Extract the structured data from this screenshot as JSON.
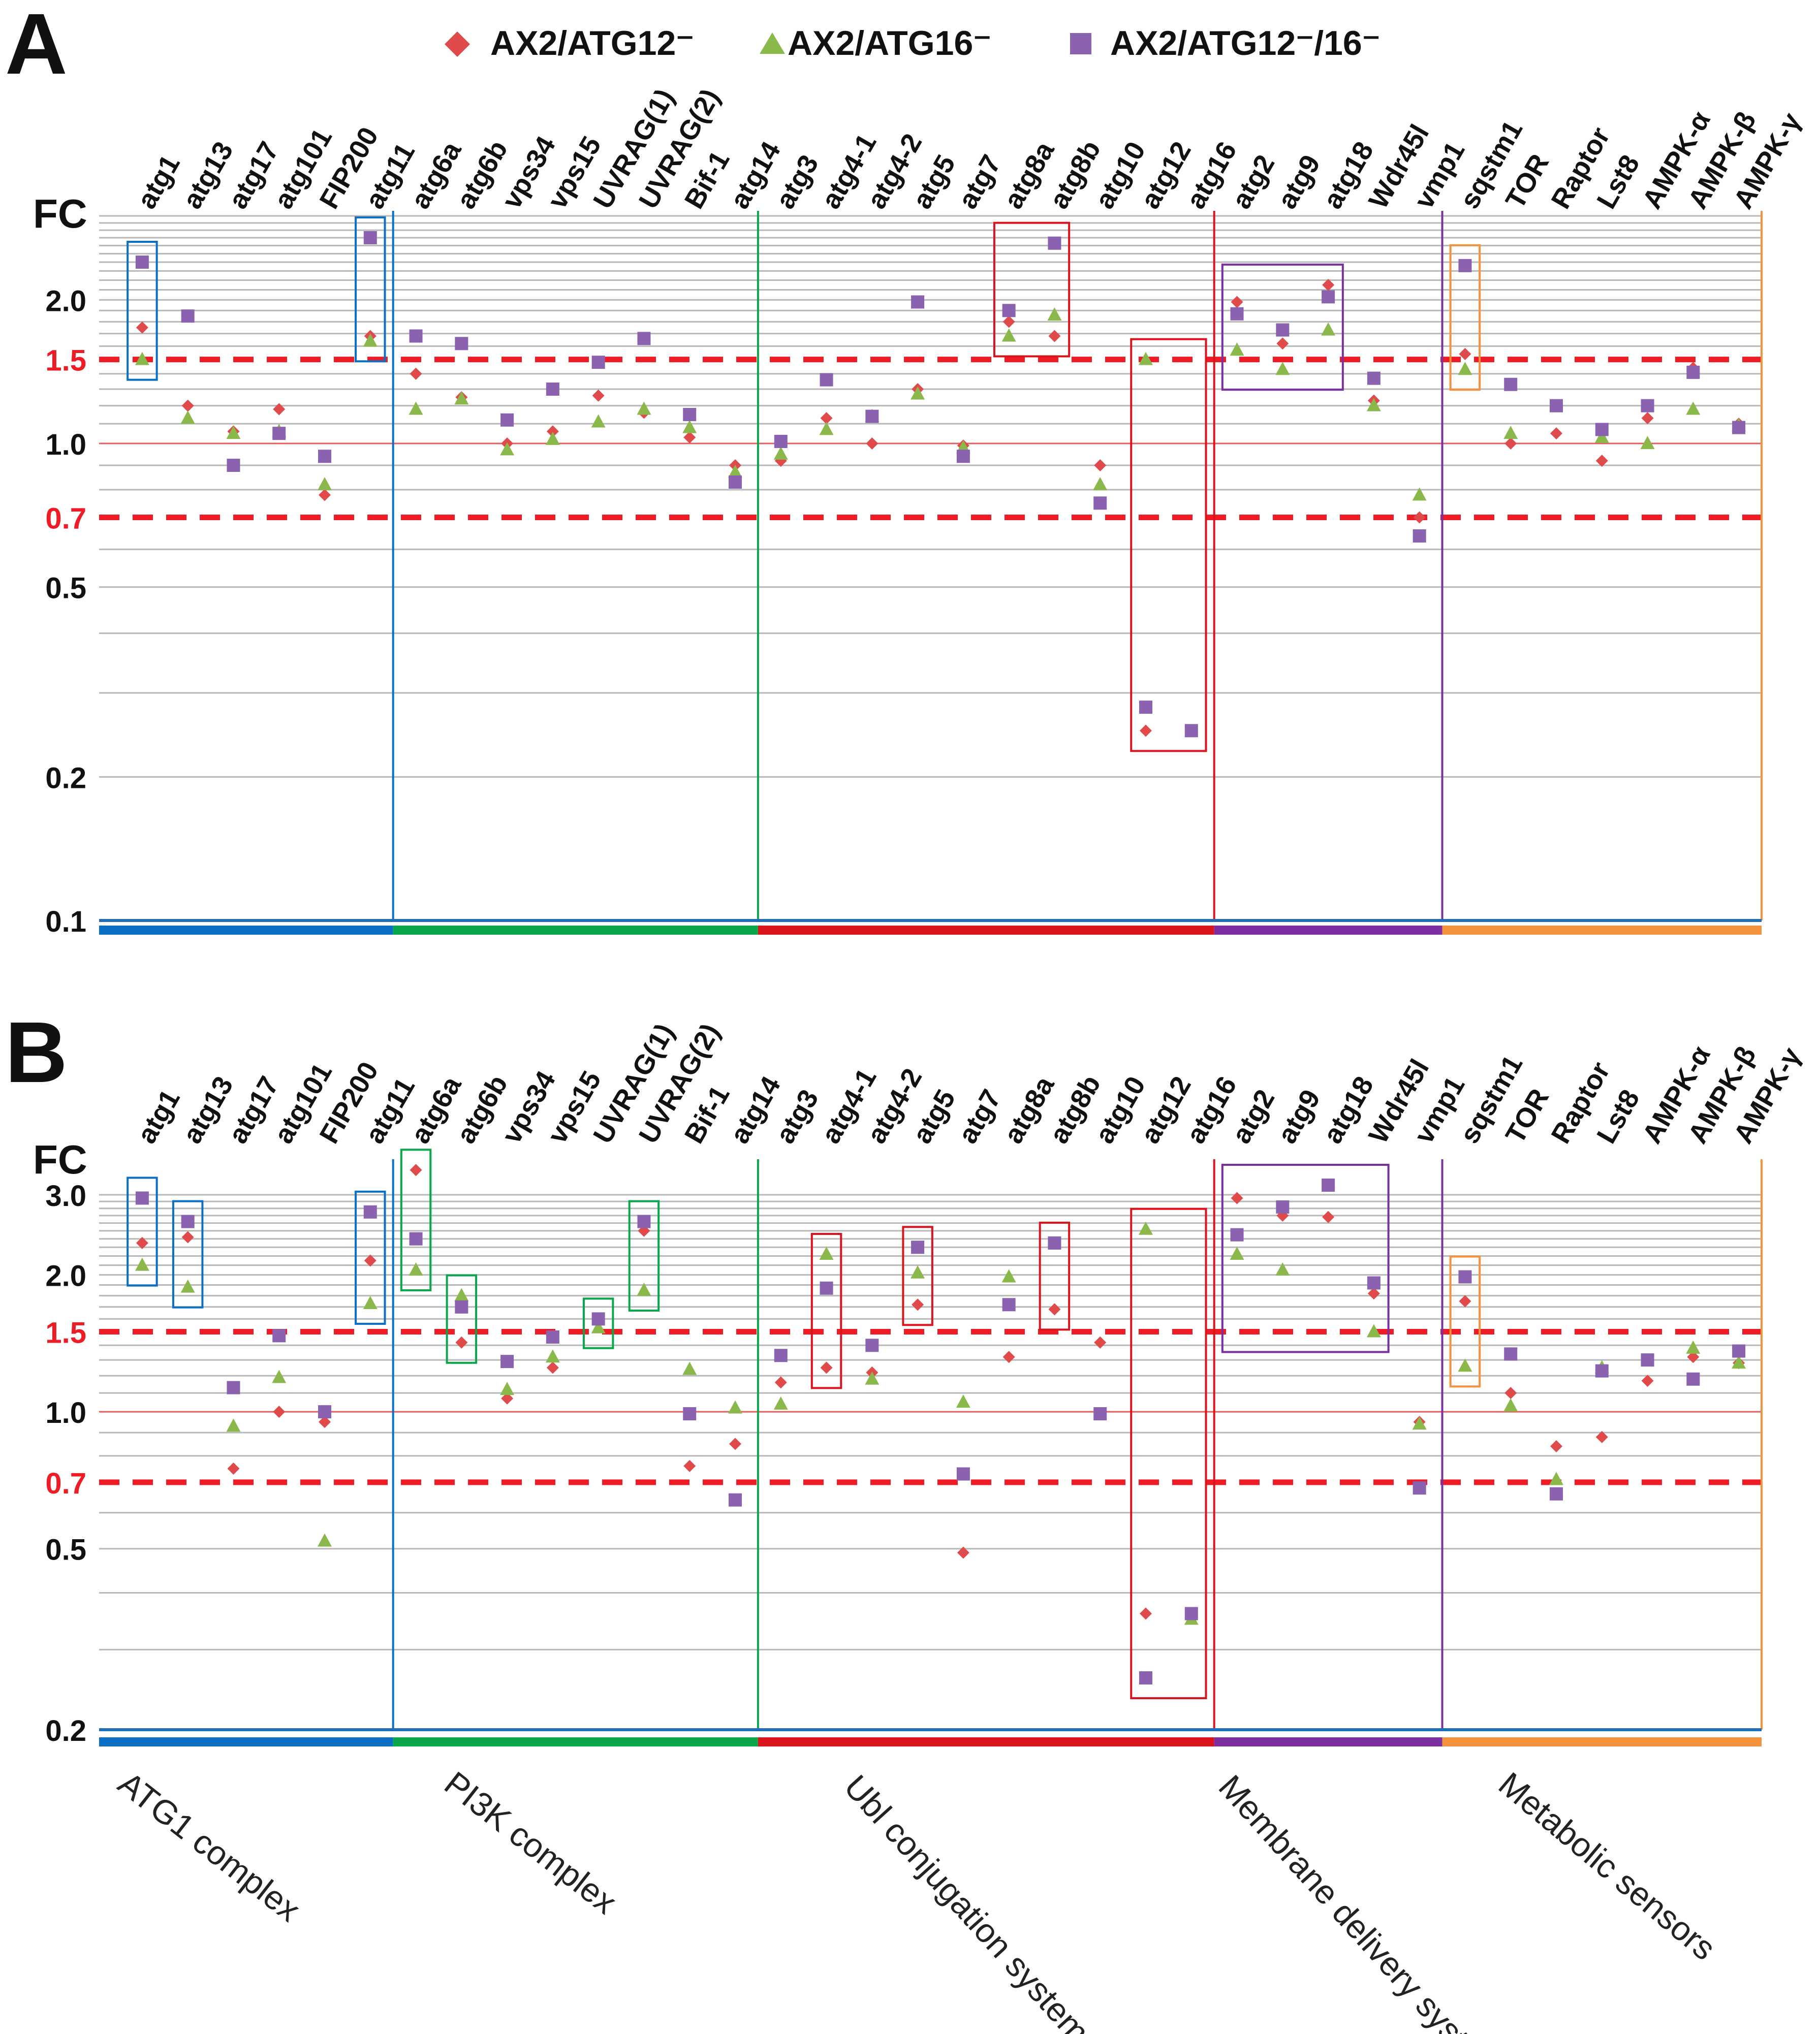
{
  "figure": {
    "legend": [
      {
        "label": "AX2/ATG12⁻",
        "marker": "diamond",
        "color": "#e04a4a"
      },
      {
        "label": "AX2/ATG16⁻",
        "marker": "triangle",
        "color": "#8bb84a"
      },
      {
        "label": "AX2/ATG12⁻/16⁻",
        "marker": "square",
        "color": "#8a62b0"
      }
    ],
    "panel_labels": [
      "A",
      "B"
    ],
    "y_axis_title": "FC",
    "colors": {
      "atg1_complex": "#0b70c4",
      "pi3k_complex": "#0aa64a",
      "ubl_conjugation": "#d9141d",
      "membrane_delivery": "#7b2fa0",
      "metabolic_sensors": "#f5923e",
      "threshold_line": "#ee1c24",
      "grid": "#b8b8b8"
    },
    "group_labels": [
      "ATG1 complex",
      "PI3K complex",
      "Ubl conjugation systems",
      "Membrane delivery system",
      "Metabolic sensors"
    ]
  },
  "chart_data": [
    {
      "panel": "A",
      "type": "scatter",
      "title": "",
      "xlabel": "",
      "ylabel": "FC",
      "yscale": "log",
      "ylim": [
        0.1,
        3.0
      ],
      "yticks": [
        0.1,
        0.2,
        0.5,
        0.7,
        1.0,
        1.5,
        2.0
      ],
      "ytick_labels": [
        "0.1",
        "0.2",
        "0.5",
        "0.7",
        "1.0",
        "1.5",
        "2.0"
      ],
      "thresholds": [
        0.7,
        1.5
      ],
      "categories": [
        "atg1",
        "atg13",
        "atg17",
        "atg101",
        "FIP200",
        "atg11",
        "atg6a",
        "atg6b",
        "vps34",
        "vps15",
        "UVRAG(1)",
        "UVRAG(2)",
        "Bif-1",
        "atg14",
        "atg3",
        "atg4-1",
        "atg4-2",
        "atg5",
        "atg7",
        "atg8a",
        "atg8b",
        "atg10",
        "atg12",
        "atg16",
        "atg2",
        "atg9",
        "atg18",
        "Wdr45l",
        "vmp1",
        "sqstm1",
        "TOR",
        "Raptor",
        "Lst8",
        "AMPK-α",
        "AMPK-β",
        "AMPK-γ"
      ],
      "groups": [
        {
          "name": "ATG1 complex",
          "start": 0,
          "end": 5
        },
        {
          "name": "PI3K complex",
          "start": 6,
          "end": 13
        },
        {
          "name": "Ubl conjugation systems",
          "start": 14,
          "end": 23
        },
        {
          "name": "Membrane delivery system",
          "start": 24,
          "end": 28
        },
        {
          "name": "Metabolic sensors",
          "start": 29,
          "end": 35
        }
      ],
      "series": [
        {
          "name": "AX2/ATG12⁻",
          "values": [
            1.75,
            1.2,
            1.06,
            1.18,
            0.78,
            1.68,
            1.4,
            1.25,
            1.0,
            1.06,
            1.26,
            1.16,
            1.03,
            0.9,
            0.92,
            1.13,
            1.0,
            1.3,
            0.99,
            1.8,
            1.68,
            0.9,
            0.25,
            null,
            1.98,
            1.62,
            2.15,
            1.23,
            0.7,
            1.54,
            1.0,
            1.05,
            0.92,
            1.13,
            1.44,
            1.1
          ]
        },
        {
          "name": "AX2/ATG16⁻",
          "values": [
            1.5,
            1.13,
            1.05,
            1.06,
            0.82,
            1.64,
            1.18,
            1.24,
            0.97,
            1.02,
            1.11,
            1.18,
            1.08,
            0.87,
            0.95,
            1.07,
            1.14,
            1.27,
            0.98,
            1.68,
            1.86,
            0.82,
            1.5,
            null,
            1.57,
            1.43,
            1.73,
            1.2,
            0.78,
            1.43,
            1.05,
            null,
            1.03,
            1.0,
            1.18,
            1.09
          ]
        },
        {
          "name": "AX2/ATG12⁻/16⁻",
          "values": [
            2.4,
            1.85,
            0.9,
            1.05,
            0.94,
            2.7,
            1.68,
            1.62,
            1.12,
            1.3,
            1.48,
            1.66,
            1.15,
            0.83,
            1.01,
            1.36,
            1.14,
            1.98,
            0.94,
            1.9,
            2.63,
            0.75,
            0.28,
            0.25,
            1.87,
            1.73,
            2.03,
            1.37,
            0.64,
            2.36,
            1.33,
            1.2,
            1.07,
            1.2,
            1.41,
            1.08
          ]
        }
      ],
      "boxes": [
        {
          "categories": [
            "atg1"
          ],
          "group": "ATG1 complex"
        },
        {
          "categories": [
            "atg11"
          ],
          "group": "ATG1 complex"
        },
        {
          "categories": [
            "atg8a",
            "atg8b"
          ],
          "group": "Ubl conjugation systems"
        },
        {
          "categories": [
            "atg12",
            "atg16"
          ],
          "group": "Ubl conjugation systems"
        },
        {
          "categories": [
            "atg2",
            "atg9",
            "atg18"
          ],
          "group": "Membrane delivery system"
        },
        {
          "categories": [
            "sqstm1"
          ],
          "group": "Metabolic sensors"
        }
      ]
    },
    {
      "panel": "B",
      "type": "scatter",
      "title": "",
      "xlabel": "",
      "ylabel": "FC",
      "yscale": "log",
      "ylim": [
        0.2,
        3.5
      ],
      "yticks": [
        0.2,
        0.5,
        0.7,
        1.0,
        1.5,
        2.0,
        3.0
      ],
      "ytick_labels": [
        "0.2",
        "0.5",
        "0.7",
        "1.0",
        "1.5",
        "2.0",
        "3.0"
      ],
      "thresholds": [
        0.7,
        1.5
      ],
      "categories": [
        "atg1",
        "atg13",
        "atg17",
        "atg101",
        "FIP200",
        "atg11",
        "atg6a",
        "atg6b",
        "vps34",
        "vps15",
        "UVRAG(1)",
        "UVRAG(2)",
        "Bif-1",
        "atg14",
        "atg3",
        "atg4-1",
        "atg4-2",
        "atg5",
        "atg7",
        "atg8a",
        "atg8b",
        "atg10",
        "atg12",
        "atg16",
        "atg2",
        "atg9",
        "atg18",
        "Wdr45l",
        "vmp1",
        "sqstm1",
        "TOR",
        "Raptor",
        "Lst8",
        "AMPK-α",
        "AMPK-β",
        "AMPK-γ"
      ],
      "groups": [
        {
          "name": "ATG1 complex",
          "start": 0,
          "end": 5
        },
        {
          "name": "PI3K complex",
          "start": 6,
          "end": 13
        },
        {
          "name": "Ubl conjugation systems",
          "start": 14,
          "end": 23
        },
        {
          "name": "Membrane delivery system",
          "start": 24,
          "end": 28
        },
        {
          "name": "Metabolic sensors",
          "start": 29,
          "end": 35
        }
      ],
      "series": [
        {
          "name": "AX2/ATG12⁻",
          "values": [
            2.35,
            2.42,
            0.75,
            1.0,
            0.95,
            2.15,
            3.4,
            1.42,
            1.07,
            1.25,
            1.58,
            2.5,
            0.76,
            0.85,
            1.16,
            1.25,
            1.22,
            1.72,
            0.49,
            1.32,
            1.68,
            1.42,
            0.36,
            null,
            2.95,
            2.7,
            2.68,
            1.82,
            0.95,
            1.75,
            1.1,
            0.84,
            0.88,
            1.17,
            1.32,
            1.28
          ]
        },
        {
          "name": "AX2/ATG16⁻",
          "values": [
            2.1,
            1.88,
            0.93,
            1.19,
            0.52,
            1.73,
            2.05,
            1.8,
            1.12,
            1.32,
            1.53,
            1.85,
            1.24,
            1.02,
            1.04,
            2.22,
            1.18,
            2.02,
            1.05,
            1.98,
            null,
            null,
            2.52,
            0.35,
            2.22,
            2.05,
            null,
            1.5,
            0.94,
            1.26,
            1.03,
            0.71,
            1.25,
            null,
            1.38,
            1.28
          ]
        },
        {
          "name": "AX2/ATG12⁻/16⁻",
          "values": [
            2.95,
            2.62,
            1.13,
            1.47,
            1.0,
            2.75,
            2.4,
            1.7,
            1.29,
            1.46,
            1.6,
            2.62,
            0.99,
            0.64,
            1.33,
            1.87,
            1.4,
            2.3,
            0.73,
            1.72,
            2.35,
            0.99,
            0.26,
            0.36,
            2.45,
            2.82,
            3.15,
            1.92,
            0.68,
            1.98,
            1.34,
            0.66,
            1.23,
            1.3,
            1.18,
            1.36
          ]
        }
      ],
      "boxes": [
        {
          "categories": [
            "atg1"
          ],
          "group": "ATG1 complex"
        },
        {
          "categories": [
            "atg13"
          ],
          "group": "ATG1 complex"
        },
        {
          "categories": [
            "atg11"
          ],
          "group": "ATG1 complex"
        },
        {
          "categories": [
            "atg6a"
          ],
          "group": "PI3K complex"
        },
        {
          "categories": [
            "atg6b"
          ],
          "group": "PI3K complex"
        },
        {
          "categories": [
            "UVRAG(1)"
          ],
          "group": "PI3K complex"
        },
        {
          "categories": [
            "UVRAG(2)"
          ],
          "group": "PI3K complex"
        },
        {
          "categories": [
            "atg4-1"
          ],
          "group": "Ubl conjugation systems"
        },
        {
          "categories": [
            "atg5"
          ],
          "group": "Ubl conjugation systems"
        },
        {
          "categories": [
            "atg8b"
          ],
          "group": "Ubl conjugation systems"
        },
        {
          "categories": [
            "atg12",
            "atg16"
          ],
          "group": "Ubl conjugation systems"
        },
        {
          "categories": [
            "atg2",
            "atg9",
            "atg18",
            "Wdr45l"
          ],
          "group": "Membrane delivery system"
        },
        {
          "categories": [
            "sqstm1"
          ],
          "group": "Metabolic sensors"
        }
      ]
    }
  ]
}
